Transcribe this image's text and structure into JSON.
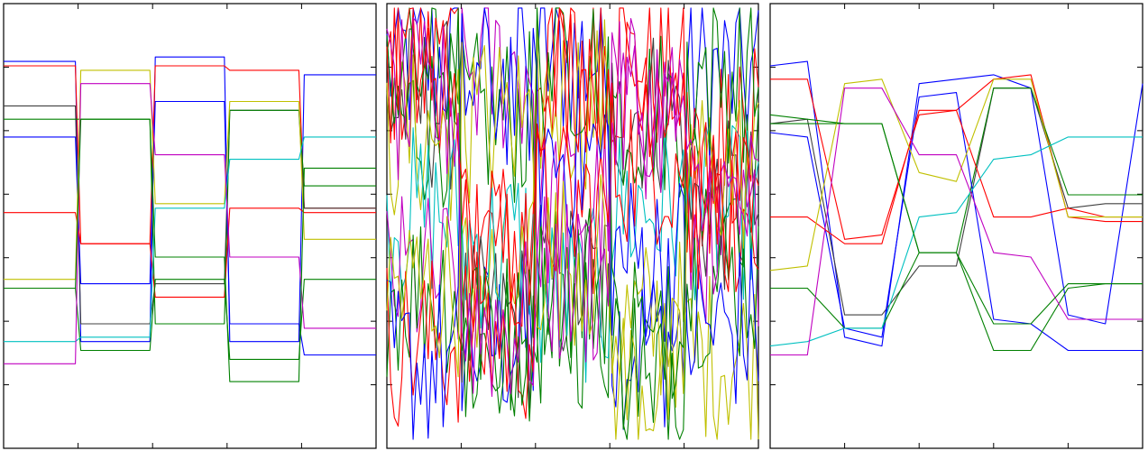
{
  "chart_data": [
    {
      "type": "line",
      "title": "",
      "xlabel": "",
      "ylabel": "",
      "xlim": [
        0,
        100
      ],
      "ylim": [
        0,
        100
      ],
      "grid": false,
      "legend": "none",
      "x": [
        0,
        20,
        40,
        60,
        80,
        100
      ],
      "series": [
        {
          "color": "#0000ff",
          "values": [
            87,
            24,
            88,
            24,
            84,
            84
          ]
        },
        {
          "color": "#ff0000",
          "values": [
            86,
            46,
            86,
            85,
            54,
            54
          ]
        },
        {
          "color": "#404040",
          "values": [
            77,
            28,
            37,
            76,
            54,
            54
          ]
        },
        {
          "color": "#008000",
          "values": [
            74,
            74,
            28,
            76,
            59,
            59
          ]
        },
        {
          "color": "#0000ff",
          "values": [
            70,
            37,
            78,
            28,
            21,
            21
          ]
        },
        {
          "color": "#ff0000",
          "values": [
            53,
            46,
            34,
            54,
            53,
            53
          ]
        },
        {
          "color": "#c0c000",
          "values": [
            38,
            85,
            55,
            78,
            47,
            47
          ]
        },
        {
          "color": "#008000",
          "values": [
            36,
            22,
            38,
            20,
            38,
            38
          ]
        },
        {
          "color": "#00c0c0",
          "values": [
            24,
            25,
            54,
            65,
            70,
            70
          ]
        },
        {
          "color": "#c000c0",
          "values": [
            19,
            82,
            66,
            43,
            27,
            27
          ]
        },
        {
          "color": "#008000",
          "values": [
            36,
            74,
            43,
            15,
            63,
            63
          ]
        }
      ]
    },
    {
      "type": "line",
      "title": "",
      "xlabel": "",
      "ylabel": "",
      "xlim": [
        0,
        100
      ],
      "ylim": [
        0,
        100
      ],
      "grid": false,
      "legend": "none",
      "x": [
        0,
        20,
        40,
        60,
        80,
        100
      ],
      "series": [
        {
          "color": "#0000ff",
          "values": [
            87,
            24,
            88,
            24,
            84,
            84
          ]
        },
        {
          "color": "#ff0000",
          "values": [
            86,
            46,
            86,
            85,
            54,
            54
          ]
        },
        {
          "color": "#404040",
          "values": [
            77,
            28,
            37,
            76,
            54,
            54
          ]
        },
        {
          "color": "#008000",
          "values": [
            74,
            74,
            28,
            76,
            59,
            59
          ]
        },
        {
          "color": "#0000ff",
          "values": [
            70,
            37,
            78,
            28,
            21,
            21
          ]
        },
        {
          "color": "#ff0000",
          "values": [
            53,
            46,
            34,
            54,
            53,
            53
          ]
        },
        {
          "color": "#c0c000",
          "values": [
            38,
            85,
            55,
            78,
            47,
            47
          ]
        },
        {
          "color": "#008000",
          "values": [
            36,
            22,
            38,
            20,
            38,
            38
          ]
        },
        {
          "color": "#00c0c0",
          "values": [
            24,
            25,
            54,
            65,
            70,
            70
          ]
        },
        {
          "color": "#c000c0",
          "values": [
            19,
            82,
            66,
            43,
            27,
            27
          ]
        },
        {
          "color": "#008000",
          "values": [
            36,
            74,
            43,
            15,
            63,
            63
          ]
        }
      ]
    },
    {
      "type": "line",
      "title": "",
      "xlabel": "",
      "ylabel": "",
      "xlim": [
        0,
        100
      ],
      "ylim": [
        0,
        100
      ],
      "grid": false,
      "legend": "none",
      "x": [
        0,
        10,
        20,
        30,
        40,
        50,
        60,
        70,
        80,
        90,
        100
      ],
      "series": [
        {
          "color": "#0000ff",
          "values": [
            86,
            87,
            25,
            23,
            82,
            83,
            84,
            81,
            30,
            28,
            82
          ]
        },
        {
          "color": "#ff0000",
          "values": [
            83,
            83,
            47,
            48,
            75,
            76,
            83,
            84,
            52,
            51,
            51
          ]
        },
        {
          "color": "#404040",
          "values": [
            73,
            74,
            30,
            30,
            41,
            41,
            81,
            81,
            54,
            55,
            55
          ]
        },
        {
          "color": "#008000",
          "values": [
            73,
            73,
            73,
            73,
            44,
            44,
            81,
            81,
            57,
            57,
            57
          ]
        },
        {
          "color": "#0000ff",
          "values": [
            71,
            70,
            27,
            25,
            79,
            80,
            29,
            28,
            22,
            22,
            22
          ]
        },
        {
          "color": "#ff0000",
          "values": [
            52,
            52,
            46,
            46,
            76,
            76,
            52,
            52,
            54,
            52,
            52
          ]
        },
        {
          "color": "#c0c000",
          "values": [
            40,
            41,
            82,
            83,
            62,
            60,
            83,
            83,
            52,
            52,
            52
          ]
        },
        {
          "color": "#008000",
          "values": [
            36,
            36,
            27,
            27,
            44,
            44,
            22,
            22,
            36,
            37,
            37
          ]
        },
        {
          "color": "#00c0c0",
          "values": [
            23,
            24,
            27,
            27,
            52,
            53,
            65,
            66,
            70,
            70,
            70
          ]
        },
        {
          "color": "#c000c0",
          "values": [
            21,
            21,
            81,
            81,
            66,
            66,
            44,
            43,
            29,
            29,
            29
          ]
        },
        {
          "color": "#008000",
          "values": [
            75,
            74,
            73,
            73,
            44,
            44,
            28,
            28,
            37,
            37,
            37
          ]
        }
      ]
    }
  ],
  "noisy_panel": {
    "series_colors": [
      "#0000ff",
      "#ff0000",
      "#404040",
      "#008000",
      "#c0c000",
      "#00c0c0",
      "#c000c0",
      "#008000",
      "#ff0000",
      "#0000ff",
      "#c0c000",
      "#008000",
      "#ff0000",
      "#c000c0"
    ],
    "points_per_series": 100
  }
}
